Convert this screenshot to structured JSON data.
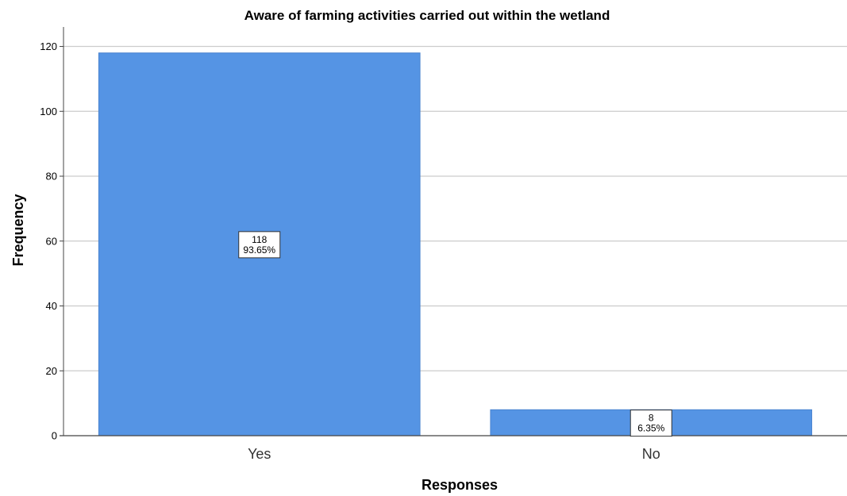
{
  "chart_data": {
    "type": "bar",
    "title": "Aware of farming activities carried out within the wetland",
    "xlabel": "Responses",
    "ylabel": "Frequency",
    "categories": [
      "Yes",
      "No"
    ],
    "values": [
      118,
      8
    ],
    "data_labels": [
      {
        "count": "118",
        "percent": "93.65%"
      },
      {
        "count": "8",
        "percent": "6.35%"
      }
    ],
    "ylim": [
      0,
      126
    ],
    "yticks": [
      0,
      20,
      40,
      60,
      80,
      100,
      120
    ],
    "grid": true,
    "bar_color": "#5594e4",
    "bar_edge_color": "#4a84cf"
  }
}
